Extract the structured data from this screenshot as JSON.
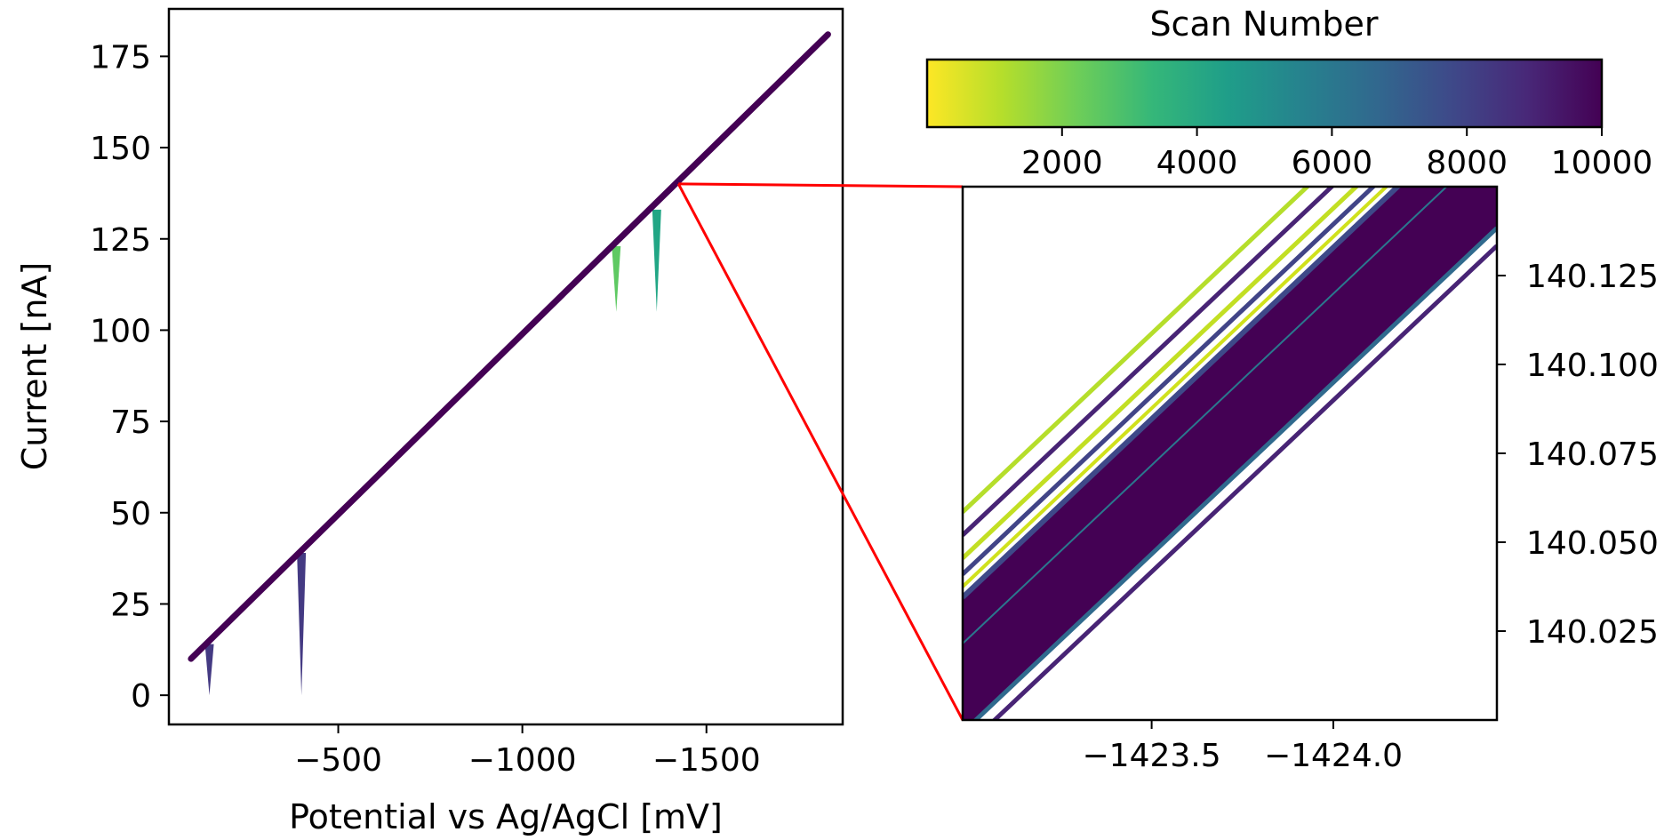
{
  "chart_data": [
    {
      "type": "line",
      "xlabel": "Potential vs Ag/AgCl [mV]",
      "ylabel": "Current [nA]",
      "xlim": [
        -40,
        -1870
      ],
      "ylim": [
        -8,
        188
      ],
      "x_ticks": [
        -500,
        -1000,
        -1500
      ],
      "x_tick_labels": [
        "−500",
        "−1000",
        "−1500"
      ],
      "y_ticks": [
        0,
        25,
        50,
        75,
        100,
        125,
        150,
        175
      ],
      "y_tick_labels": [
        "0",
        "25",
        "50",
        "75",
        "100",
        "125",
        "150",
        "175"
      ],
      "main_line": {
        "x": [
          -100,
          -1830
        ],
        "y": [
          10,
          181
        ],
        "color": "#440154"
      },
      "spikes": [
        {
          "x": -150,
          "y_top": 14,
          "y_bottom": 0,
          "color": "#443a83"
        },
        {
          "x": -400,
          "y_top": 39,
          "y_bottom": 0,
          "color": "#443a83"
        },
        {
          "x": -1255,
          "y_top": 123,
          "y_bottom": 105,
          "color": "#5ec962"
        },
        {
          "x": -1365,
          "y_top": 133,
          "y_bottom": 105,
          "color": "#21a685"
        }
      ],
      "zoom_anchor": {
        "x": -1423.9,
        "y": 140.08
      }
    },
    {
      "type": "line",
      "title": "",
      "xlim": [
        -1422.98,
        -1424.45
      ],
      "ylim": [
        140.0,
        140.15
      ],
      "x_ticks": [
        -1423.5,
        -1424.0
      ],
      "x_tick_labels": [
        "−1423.5",
        "−1424.0"
      ],
      "y_ticks": [
        140.025,
        140.05,
        140.075,
        140.1,
        140.125
      ],
      "y_tick_labels": [
        "140.025",
        "140.050",
        "140.075",
        "140.100",
        "140.125"
      ],
      "band": {
        "slope": 0.0965,
        "low_offset": -0.003,
        "high_offset": 0.034,
        "color": "#440154"
      },
      "series": [
        {
          "offset": 0.0585,
          "color": "#b5de2b",
          "width": 5
        },
        {
          "offset": 0.052,
          "color": "#482475",
          "width": 5
        },
        {
          "offset": 0.0455,
          "color": "#c2df23",
          "width": 5
        },
        {
          "offset": 0.041,
          "color": "#414487",
          "width": 5
        },
        {
          "offset": 0.0375,
          "color": "#d0e11c",
          "width": 4
        },
        {
          "offset": 0.0345,
          "color": "#3e4989",
          "width": 6
        },
        {
          "offset": 0.0215,
          "color": "#2a788e",
          "width": 2
        },
        {
          "offset": -0.0035,
          "color": "#306a8e",
          "width": 5
        },
        {
          "offset": -0.0085,
          "color": "#482475",
          "width": 5
        }
      ]
    }
  ],
  "colorbar": {
    "label": "Scan Number",
    "ticks": [
      2000,
      4000,
      6000,
      8000,
      10000
    ],
    "tick_labels": [
      "2000",
      "4000",
      "6000",
      "8000",
      "10000"
    ],
    "range": [
      0,
      10000
    ],
    "colormap": [
      "#fde725",
      "#b5de2b",
      "#6ece58",
      "#35b779",
      "#1f9e89",
      "#26828e",
      "#31688e",
      "#3e4989",
      "#482878",
      "#440154"
    ]
  },
  "colors": {
    "zoom_connector": "#ff0000"
  }
}
